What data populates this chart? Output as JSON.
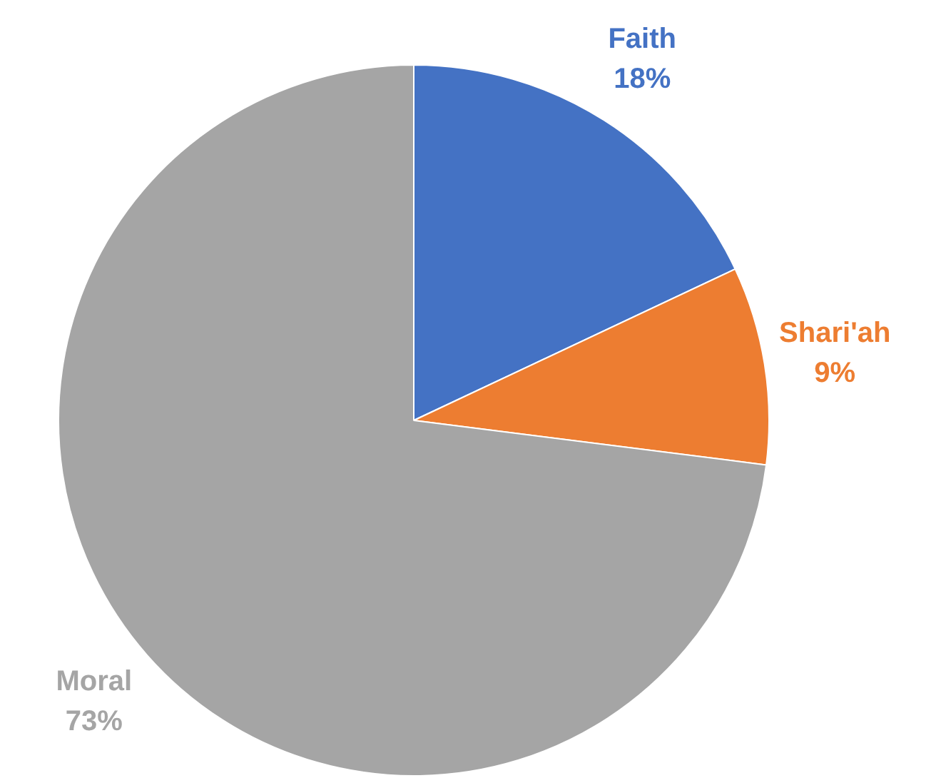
{
  "chart_data": {
    "type": "pie",
    "categories": [
      "Faith",
      "Shari'ah",
      "Moral"
    ],
    "values": [
      18,
      9,
      73
    ],
    "colors": [
      "#4472c4",
      "#ed7d31",
      "#a5a5a5"
    ],
    "value_labels": [
      "18%",
      "9%",
      "73%"
    ],
    "legend": false
  }
}
